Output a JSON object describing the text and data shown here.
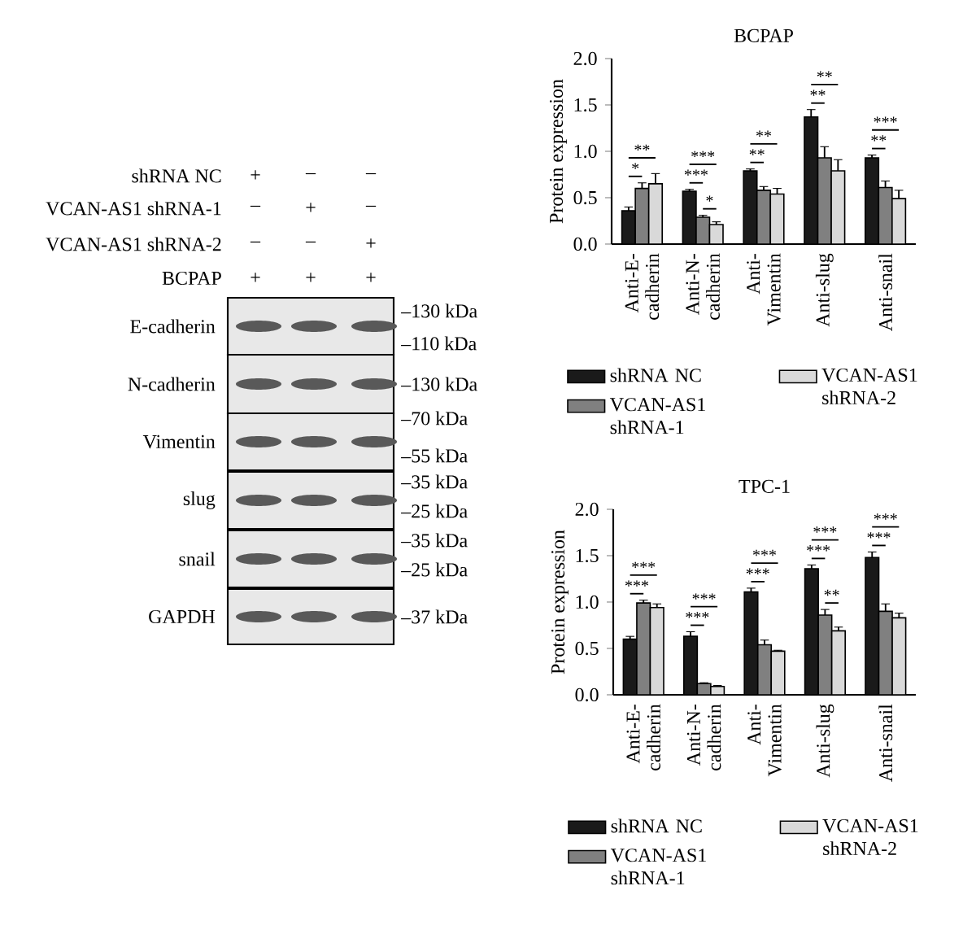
{
  "chart_data": [
    {
      "type": "other",
      "annotations": [
        "shRNA NC",
        "VCAN-AS1 shRNA-1",
        "VCAN-AS1 shRNA-2",
        "BCPAP",
        "+",
        "–",
        "–",
        "–",
        "+",
        "–",
        "–",
        "–",
        "+",
        "+",
        "+",
        "+",
        "E-cadherin",
        "N-cadherin",
        "Vimentin",
        "slug",
        "snail",
        "GAPDH",
        "–130 kDa",
        "–110 kDa",
        "–130 kDa",
        "–70 kDa",
        "–55 kDa",
        "–35 kDa",
        "–25 kDa",
        "–35 kDa",
        "–25 kDa",
        "–37 kDa"
      ]
    },
    {
      "type": "bar",
      "title": "BCPAP",
      "ylabel": "Protein expression",
      "categories": [
        "Anti-E-cadherin",
        "Anti-N-cadherin",
        "Anti-Vimentin",
        "Anti-slug",
        "Anti-snail"
      ],
      "series": [
        {
          "name": "shRNA NC",
          "color": "#1a1a1a",
          "values": [
            0.36,
            0.57,
            0.79,
            1.37,
            0.93
          ],
          "errors": [
            0.04,
            0.02,
            0.02,
            0.08,
            0.03
          ]
        },
        {
          "name": "VCAN-AS1 shRNA-1",
          "color": "#808080",
          "values": [
            0.6,
            0.29,
            0.58,
            0.93,
            0.61
          ],
          "errors": [
            0.06,
            0.02,
            0.04,
            0.12,
            0.07
          ]
        },
        {
          "name": "VCAN-AS1 shRNA-2",
          "color": "#d9d9d9",
          "values": [
            0.65,
            0.21,
            0.54,
            0.79,
            0.49
          ],
          "errors": [
            0.11,
            0.03,
            0.06,
            0.12,
            0.09
          ]
        }
      ],
      "ylim": [
        0,
        2
      ],
      "yticks": [
        {
          "value": 0,
          "label": "0.0"
        },
        {
          "value": 0.5,
          "label": "0.5"
        },
        {
          "value": 1,
          "label": "1.0"
        },
        {
          "value": 1.5,
          "label": "1.5"
        },
        {
          "value": 2,
          "label": "2.0"
        }
      ],
      "legend": "bottom",
      "annotations": [
        "**",
        "*",
        "***",
        "***",
        "*",
        "**",
        "**",
        "**",
        "**",
        "***",
        "**"
      ]
    },
    {
      "type": "bar",
      "title": "TPC-1",
      "ylabel": "Protein expression",
      "categories": [
        "Anti-E-cadherin",
        "Anti-N-cadherin",
        "Anti-Vimentin",
        "Anti-slug",
        "Anti-snail"
      ],
      "series": [
        {
          "name": "shRNA NC",
          "color": "#1a1a1a",
          "values": [
            0.6,
            0.63,
            1.11,
            1.36,
            1.48
          ],
          "errors": [
            0.03,
            0.05,
            0.04,
            0.04,
            0.06
          ]
        },
        {
          "name": "VCAN-AS1 shRNA-1",
          "color": "#808080",
          "values": [
            0.99,
            0.12,
            0.54,
            0.86,
            0.9
          ],
          "errors": [
            0.03,
            0.01,
            0.05,
            0.06,
            0.08
          ]
        },
        {
          "name": "VCAN-AS1 shRNA-2",
          "color": "#d9d9d9",
          "values": [
            0.94,
            0.09,
            0.47,
            0.69,
            0.83
          ],
          "errors": [
            0.04,
            0.01,
            0.01,
            0.04,
            0.05
          ]
        }
      ],
      "ylim": [
        0,
        2
      ],
      "yticks": [
        {
          "value": 0,
          "label": "0.0"
        },
        {
          "value": 0.5,
          "label": "0.5"
        },
        {
          "value": 1,
          "label": "1.0"
        },
        {
          "value": 1.5,
          "label": "1.5"
        },
        {
          "value": 2,
          "label": "2.0"
        }
      ],
      "legend": "bottom",
      "annotations": [
        "***",
        "***",
        "***",
        "***",
        "***",
        "***",
        "***",
        "***",
        "**",
        "***",
        "***"
      ]
    }
  ]
}
